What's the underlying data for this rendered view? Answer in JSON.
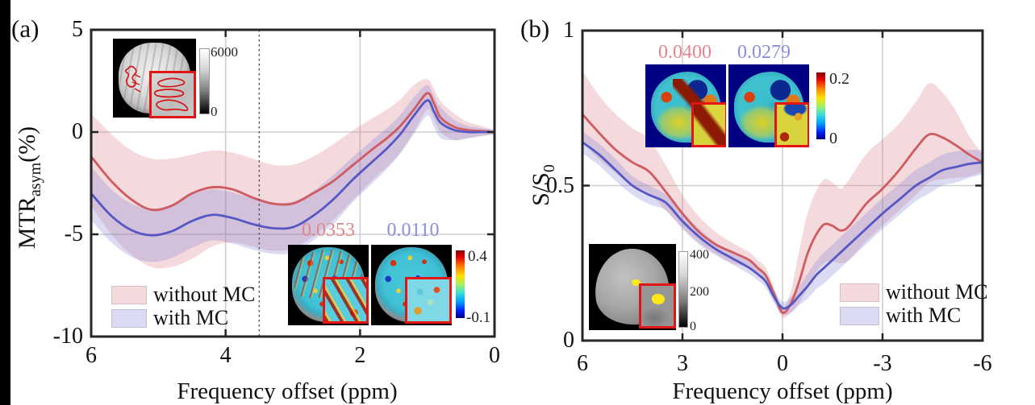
{
  "panels": {
    "a": {
      "label": "(a)",
      "ylabel_main": "MTR",
      "ylabel_sub": "asym",
      "ylabel_unit": "(%)",
      "xlabel": "Frequency offset (ppm)",
      "anatomy_inset": {
        "cbar_top": "6000",
        "cbar_bottom": "0"
      },
      "map_inset": {
        "without_value": "0.0353",
        "with_value": "0.0110",
        "cbar_top": "0.4",
        "cbar_bottom": "-0.1"
      }
    },
    "b": {
      "label": "(b)",
      "ylabel_main": "S/S",
      "ylabel_sub": "0",
      "xlabel": "Frequency offset (ppm)",
      "map_inset": {
        "without_value": "0.0400",
        "with_value": "0.0279",
        "cbar_top": "0.2",
        "cbar_bottom": "0"
      },
      "anatomy_inset": {
        "cbar_top": "400",
        "cbar_mid": "200",
        "cbar_bottom": "0"
      }
    }
  },
  "colors": {
    "without_line": "#cf5a60",
    "with_line": "#5557c5",
    "without_band": "rgba(214,120,125,0.27)",
    "with_band": "rgba(110,115,210,0.25)",
    "without_value_label": "#e2868b",
    "with_value_label": "#8b8fd9",
    "grid": "#cfcfcf",
    "axis": "#262626",
    "dashed_line": "#5a5a5a"
  },
  "chart_data": [
    {
      "id": "a",
      "type": "line",
      "title": "",
      "xlabel": "Frequency offset (ppm)",
      "ylabel": "MTR_asym (%)",
      "xlim_left_to_right": [
        6,
        0
      ],
      "ylim": [
        -10,
        5
      ],
      "xticks": [
        6,
        4,
        2,
        0
      ],
      "yticks": [
        5,
        0,
        -5,
        -10
      ],
      "xgrid": [
        4,
        2
      ],
      "ygrid": [
        0,
        -5
      ],
      "vline_dashed_x": 3.5,
      "legend_position": "bottom-left",
      "x": [
        6.0,
        5.7,
        5.4,
        5.1,
        4.8,
        4.5,
        4.2,
        3.9,
        3.6,
        3.3,
        3.0,
        2.7,
        2.4,
        2.1,
        1.8,
        1.6,
        1.4,
        1.2,
        1.0,
        0.9,
        0.8,
        0.6,
        0.4,
        0.2,
        0.0
      ],
      "series": [
        {
          "name": "without MC",
          "color": "#cf5a60",
          "band_color": "rgba(214,120,125,0.27)",
          "mean": [
            -1.2,
            -2.4,
            -3.3,
            -3.8,
            -3.6,
            -3.0,
            -2.7,
            -2.8,
            -3.2,
            -3.5,
            -3.5,
            -3.0,
            -2.4,
            -1.6,
            -0.8,
            -0.3,
            0.3,
            1.1,
            1.9,
            1.4,
            0.7,
            0.25,
            0.1,
            0.05,
            0.0
          ],
          "band_upper": [
            0.9,
            -0.1,
            -0.9,
            -1.3,
            -1.3,
            -1.1,
            -0.9,
            -1.0,
            -1.3,
            -1.6,
            -1.6,
            -1.2,
            -0.6,
            0.1,
            0.7,
            1.1,
            1.6,
            2.3,
            2.6,
            2.1,
            1.5,
            0.9,
            0.5,
            0.3,
            0.1
          ],
          "band_lower": [
            -3.6,
            -5.0,
            -6.0,
            -6.6,
            -6.6,
            -6.2,
            -5.6,
            -5.4,
            -5.6,
            -5.8,
            -5.7,
            -5.1,
            -4.3,
            -3.3,
            -2.3,
            -1.7,
            -1.0,
            0.0,
            1.1,
            0.6,
            0.0,
            -0.4,
            -0.3,
            -0.2,
            -0.1
          ]
        },
        {
          "name": "with MC",
          "color": "#5557c5",
          "band_color": "rgba(110,115,210,0.25)",
          "mean": [
            -3.0,
            -4.1,
            -4.8,
            -5.05,
            -4.85,
            -4.35,
            -4.05,
            -4.2,
            -4.5,
            -4.7,
            -4.65,
            -4.1,
            -3.3,
            -2.3,
            -1.4,
            -0.8,
            -0.1,
            0.8,
            1.55,
            1.0,
            0.45,
            0.1,
            0.0,
            0.0,
            0.0
          ],
          "band_upper": [
            -1.7,
            -2.8,
            -3.5,
            -3.75,
            -3.55,
            -3.05,
            -2.8,
            -2.95,
            -3.25,
            -3.45,
            -3.4,
            -2.9,
            -2.1,
            -1.2,
            -0.35,
            0.2,
            0.85,
            1.7,
            2.3,
            1.75,
            1.2,
            0.6,
            0.3,
            0.2,
            0.1
          ],
          "band_lower": [
            -4.3,
            -5.4,
            -6.1,
            -6.35,
            -6.15,
            -5.65,
            -5.3,
            -5.45,
            -5.75,
            -5.95,
            -5.9,
            -5.3,
            -4.5,
            -3.4,
            -2.45,
            -1.8,
            -1.05,
            -0.1,
            0.8,
            0.25,
            -0.3,
            -0.4,
            -0.3,
            -0.2,
            -0.1
          ]
        }
      ]
    },
    {
      "id": "b",
      "type": "line",
      "title": "",
      "xlabel": "Frequency offset (ppm)",
      "ylabel": "S/S0",
      "xlim_left_to_right": [
        6,
        -6
      ],
      "ylim": [
        0,
        1
      ],
      "xticks": [
        6,
        3,
        0,
        -3,
        -6
      ],
      "yticks": [
        1,
        0.5,
        0
      ],
      "xgrid": [
        3,
        0,
        -3
      ],
      "ygrid": [
        0.5
      ],
      "vline_dashed_x": null,
      "legend_position": "bottom-right",
      "x": [
        6,
        5.5,
        5,
        4.5,
        4,
        3.5,
        3,
        2.5,
        2,
        1.5,
        1,
        0.75,
        0.5,
        0.25,
        0,
        -0.25,
        -0.5,
        -0.75,
        -1,
        -1.25,
        -1.5,
        -1.75,
        -2,
        -2.5,
        -3,
        -3.5,
        -4,
        -4.4,
        -4.8,
        -5.2,
        -5.6,
        -6
      ],
      "series": [
        {
          "name": "without MC",
          "color": "#cf5a60",
          "band_color": "rgba(214,120,125,0.27)",
          "mean": [
            0.73,
            0.67,
            0.615,
            0.575,
            0.545,
            0.48,
            0.41,
            0.35,
            0.31,
            0.285,
            0.26,
            0.235,
            0.21,
            0.15,
            0.09,
            0.12,
            0.19,
            0.28,
            0.34,
            0.375,
            0.37,
            0.355,
            0.37,
            0.44,
            0.49,
            0.55,
            0.62,
            0.665,
            0.655,
            0.63,
            0.6,
            0.575
          ],
          "band_upper": [
            0.87,
            0.79,
            0.73,
            0.685,
            0.65,
            0.565,
            0.47,
            0.4,
            0.35,
            0.315,
            0.285,
            0.26,
            0.235,
            0.17,
            0.105,
            0.16,
            0.29,
            0.41,
            0.48,
            0.52,
            0.51,
            0.49,
            0.52,
            0.6,
            0.65,
            0.7,
            0.77,
            0.83,
            0.8,
            0.74,
            0.66,
            0.6
          ],
          "band_lower": [
            0.64,
            0.585,
            0.54,
            0.5,
            0.475,
            0.42,
            0.365,
            0.315,
            0.28,
            0.25,
            0.235,
            0.21,
            0.185,
            0.13,
            0.075,
            0.09,
            0.12,
            0.17,
            0.22,
            0.25,
            0.255,
            0.25,
            0.26,
            0.32,
            0.37,
            0.42,
            0.47,
            0.51,
            0.52,
            0.525,
            0.53,
            0.545
          ]
        },
        {
          "name": "with MC",
          "color": "#5557c5",
          "band_color": "rgba(110,115,210,0.25)",
          "mean": [
            0.64,
            0.6,
            0.55,
            0.5,
            0.47,
            0.445,
            0.385,
            0.335,
            0.295,
            0.265,
            0.235,
            0.215,
            0.19,
            0.14,
            0.105,
            0.115,
            0.145,
            0.175,
            0.21,
            0.235,
            0.26,
            0.285,
            0.31,
            0.36,
            0.41,
            0.455,
            0.5,
            0.525,
            0.55,
            0.56,
            0.57,
            0.575
          ],
          "band_upper": [
            0.675,
            0.635,
            0.585,
            0.53,
            0.5,
            0.47,
            0.41,
            0.36,
            0.315,
            0.285,
            0.255,
            0.235,
            0.21,
            0.16,
            0.125,
            0.14,
            0.175,
            0.215,
            0.255,
            0.285,
            0.31,
            0.335,
            0.36,
            0.41,
            0.46,
            0.505,
            0.55,
            0.575,
            0.6,
            0.61,
            0.615,
            0.615
          ],
          "band_lower": [
            0.605,
            0.565,
            0.515,
            0.47,
            0.44,
            0.42,
            0.36,
            0.31,
            0.275,
            0.245,
            0.215,
            0.195,
            0.17,
            0.12,
            0.085,
            0.09,
            0.115,
            0.135,
            0.165,
            0.185,
            0.21,
            0.235,
            0.26,
            0.31,
            0.36,
            0.405,
            0.45,
            0.475,
            0.5,
            0.51,
            0.525,
            0.535
          ]
        }
      ]
    }
  ]
}
